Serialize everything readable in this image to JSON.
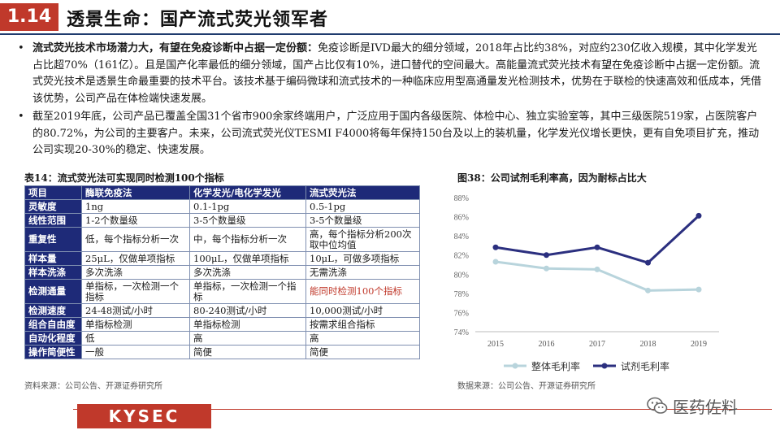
{
  "header": {
    "number": "1.14",
    "title": "透景生命：国产流式荧光领军者"
  },
  "bullets": [
    {
      "bold": "流式荧光技术市场潜力大，有望在免疫诊断中占据一定份额：",
      "text": "免疫诊断是IVD最大的细分领域，2018年占比约38%，对应约230亿收入规模，其中化学发光占比超70%（161亿）。且是国产化率最低的细分领域，国产占比仅有10%，进口替代的空间最大。高能量流式荧光技术有望在免疫诊断中占据一定份额。流式荧光技术是透景生命最重要的技术平台。该技术基于编码微球和流式技术的一种临床应用型高通量发光检测技术，优势在于联检的快速高效和低成本，凭借该优势，公司产品在体检端快速发展。"
    },
    {
      "bold": "",
      "text": "截至2019年底，公司产品已覆盖全国31个省市900余家终端用户，广泛应用于国内各级医院、体检中心、独立实验室等，其中三级医院519家，占医院客户的80.72%，为公司的主要客户。未来，公司流式荧光仪TESMI F4000将每年保持150台及以上的装机量，化学发光仪增长更快，更有自免项目扩充，推动公司实现20-30%的稳定、快速发展。"
    }
  ],
  "table": {
    "title": "表14：流式荧光法可实现同时检测100个指标",
    "header": [
      "项目",
      "酶联免疫法",
      "化学发光/电化学发光",
      "流式荧光法"
    ],
    "rows": [
      [
        "灵敏度",
        "1ng",
        "0.1-1pg",
        "0.5-1pg"
      ],
      [
        "线性范围",
        "1-2个数量级",
        "3-5个数量级",
        "3-5个数量级"
      ],
      [
        "重复性",
        "低，每个指标分析一次",
        "中，每个指标分析一次",
        "高，每个指标分析200次取中位均值"
      ],
      [
        "样本量",
        "25μL，仅做单项指标",
        "100μL，仅做单项指标",
        "10μL，可做多项指标"
      ],
      [
        "样本洗涤",
        "多次洗涤",
        "多次洗涤",
        "无需洗涤"
      ],
      [
        "检测通量",
        "单指标，一次检测一个指标",
        "单指标，一次检测一个指标",
        "能同时检测100个指标"
      ],
      [
        "检测速度",
        "24-48测试/小时",
        "80-240测试/小时",
        "10,000测试/小时"
      ],
      [
        "组合自由度",
        "单指标检测",
        "单指标检测",
        "按需求组合指标"
      ],
      [
        "自动化程度",
        "低",
        "高",
        "高"
      ],
      [
        "操作简便性",
        "一般",
        "简便",
        "简便"
      ]
    ],
    "source": "资料来源：公司公告、开源证券研究所"
  },
  "chart_title": "图38：公司试剂毛利率高，因为耐标占比大",
  "chart_source": "数据来源：公司公告、开源证券研究所",
  "chart_data": {
    "type": "line",
    "categories": [
      "2015",
      "2016",
      "2017",
      "2018",
      "2019"
    ],
    "series": [
      {
        "name": "整体毛利率",
        "values": [
          81.3,
          80.6,
          80.5,
          78.3,
          78.4
        ],
        "color": "#b8d4dc"
      },
      {
        "name": "试剂毛利率",
        "values": [
          82.8,
          82.0,
          82.8,
          81.2,
          86.1
        ],
        "color": "#2b2f7f"
      }
    ],
    "ylim": [
      74,
      88
    ],
    "yticks": [
      "74%",
      "76%",
      "78%",
      "80%",
      "82%",
      "84%",
      "86%",
      "88%"
    ],
    "legend": "bottom"
  },
  "footer": {
    "logo": "KYSEC",
    "wechat": "医药佐料"
  }
}
